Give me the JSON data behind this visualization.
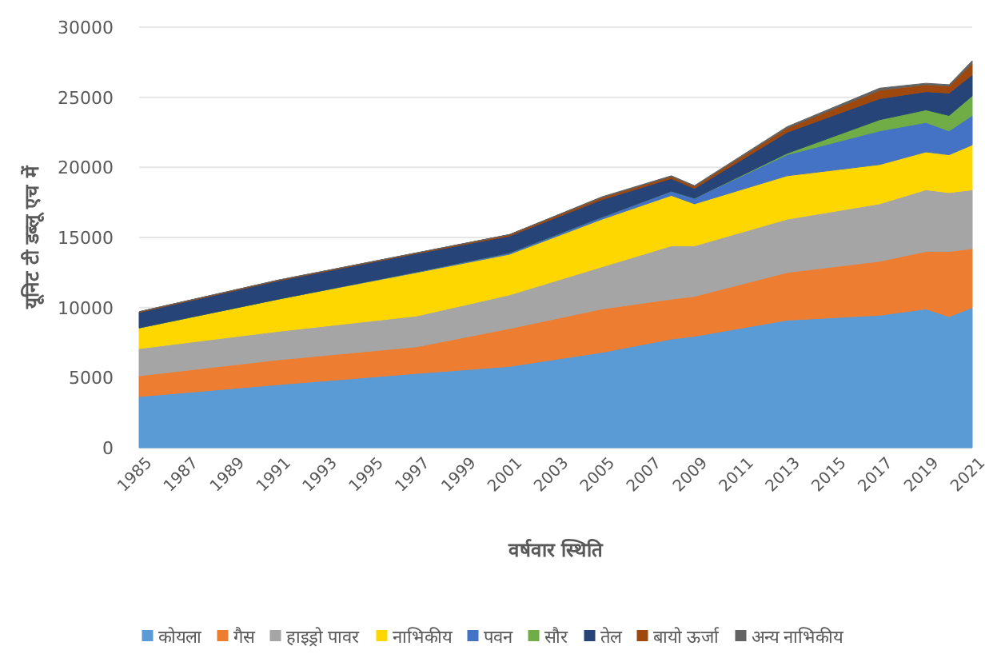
{
  "chart_data": {
    "type": "area",
    "stacked": true,
    "xlabel": "वर्षवार स्थिति",
    "ylabel": "यूनिट टी डब्लू एच में",
    "x": [
      1985,
      1991,
      1997,
      2001,
      2005,
      2008,
      2009,
      2013,
      2017,
      2019,
      2020,
      2021
    ],
    "xlim": [
      1985,
      2021
    ],
    "xticks": [
      1985,
      1987,
      1989,
      1991,
      1993,
      1995,
      1997,
      1999,
      2001,
      2003,
      2005,
      2007,
      2009,
      2011,
      2013,
      2015,
      2017,
      2019,
      2021
    ],
    "ylim": [
      0,
      30000
    ],
    "yticks": [
      0,
      5000,
      10000,
      15000,
      20000,
      25000,
      30000
    ],
    "grid": "y",
    "legend": "bottom",
    "series": [
      {
        "name": "कोयला",
        "color": "#5b9bd5",
        "values": [
          3650,
          4500,
          5300,
          5800,
          6800,
          7750,
          7950,
          9100,
          9450,
          9900,
          9350,
          10000
        ]
      },
      {
        "name": "गैस",
        "color": "#ed7d31",
        "values": [
          1480,
          1770,
          1900,
          2700,
          3100,
          2850,
          2850,
          3400,
          3850,
          4100,
          4650,
          4200
        ]
      },
      {
        "name": "हाइड्रो पावर",
        "color": "#a5a5a5",
        "values": [
          1940,
          2030,
          2200,
          2400,
          3000,
          3800,
          3600,
          3800,
          4100,
          4400,
          4200,
          4200
        ]
      },
      {
        "name": "नाभिकीय",
        "color": "#ffd700",
        "values": [
          1480,
          2300,
          3100,
          2900,
          3400,
          3600,
          3000,
          3100,
          2800,
          2700,
          2700,
          3200
        ]
      },
      {
        "name": "पवन",
        "color": "#4472c4",
        "values": [
          0,
          0,
          50,
          100,
          150,
          300,
          400,
          1500,
          2400,
          2100,
          1700,
          2100
        ]
      },
      {
        "name": "सौर",
        "color": "#70ad47",
        "values": [
          0,
          0,
          0,
          0,
          0,
          0,
          0,
          100,
          800,
          900,
          1100,
          1400
        ]
      },
      {
        "name": "तेल",
        "color": "#264478",
        "values": [
          1100,
          1300,
          1300,
          1200,
          1250,
          900,
          700,
          1500,
          1500,
          1300,
          1600,
          1500
        ]
      },
      {
        "name": "बायो ऊर्जा",
        "color": "#9e480e",
        "values": [
          50,
          50,
          50,
          100,
          150,
          150,
          150,
          300,
          600,
          500,
          500,
          800
        ]
      },
      {
        "name": "अन्य नाभिकीय",
        "color": "#636363",
        "values": [
          0,
          0,
          0,
          0,
          50,
          50,
          50,
          100,
          150,
          100,
          100,
          200
        ]
      }
    ]
  }
}
